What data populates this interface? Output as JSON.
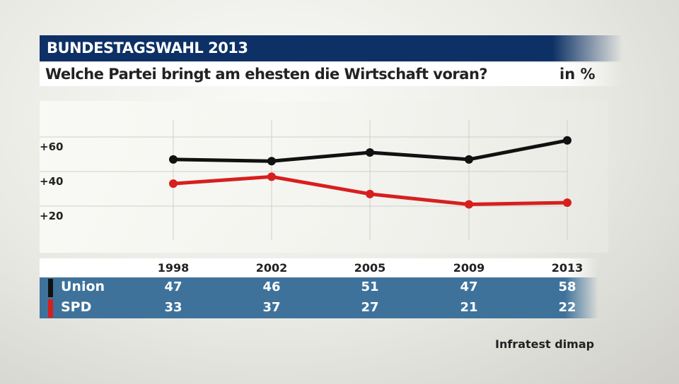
{
  "header": {
    "title": "BUNDESTAGSWAHL 2013",
    "question": "Welche Partei bringt am ehesten die Wirtschaft voran?",
    "unit": "in %"
  },
  "chart_data": {
    "type": "line",
    "categories": [
      "1998",
      "2002",
      "2005",
      "2009",
      "2013"
    ],
    "series": [
      {
        "name": "Union",
        "color": "#111111",
        "values": [
          47,
          46,
          51,
          47,
          58
        ]
      },
      {
        "name": "SPD",
        "color": "#d71f1f",
        "values": [
          33,
          37,
          27,
          21,
          22
        ]
      }
    ],
    "yticks": [
      "+20",
      "+40",
      "+60"
    ],
    "ytick_values": [
      20,
      40,
      60
    ],
    "ylim": [
      0,
      70
    ],
    "grid": true
  },
  "source": "Infratest dimap"
}
